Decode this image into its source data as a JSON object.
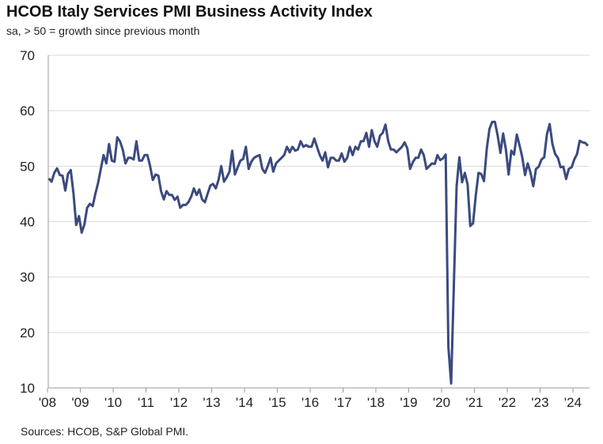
{
  "chart_data": {
    "type": "line",
    "title": "HCOB Italy Services PMI Business Activity Index",
    "subtitle": "sa, > 50 = growth since previous month",
    "source": "Sources: HCOB, S&P Global PMI.",
    "ylim": [
      10,
      70
    ],
    "yticks": [
      "10",
      "20",
      "30",
      "40",
      "50",
      "60",
      "70"
    ],
    "xticks": [
      "'08",
      "'09",
      "'10",
      "'11",
      "'12",
      "'13",
      "'14",
      "'15",
      "'16",
      "'17",
      "'18",
      "'19",
      "'20",
      "'21",
      "'22",
      "'23",
      "'24"
    ],
    "grid": true,
    "line_color": "#3b4a7e",
    "start": "2008-01",
    "frequency": "monthly",
    "values": [
      47.8,
      47.2,
      48.8,
      49.6,
      48.4,
      48.3,
      45.6,
      48.6,
      49.3,
      45.0,
      39.4,
      41.0,
      38.0,
      39.5,
      42.5,
      43.2,
      42.8,
      45.0,
      47.0,
      49.5,
      52.0,
      50.5,
      54.0,
      51.0,
      50.8,
      55.2,
      54.5,
      53.0,
      50.5,
      51.5,
      51.5,
      51.2,
      54.5,
      51.0,
      51.0,
      52.0,
      52.0,
      50.0,
      47.5,
      48.5,
      48.3,
      45.5,
      44.0,
      45.5,
      44.8,
      44.8,
      43.9,
      44.5,
      42.5,
      43.0,
      43.0,
      43.5,
      44.5,
      46.0,
      44.8,
      45.8,
      44.0,
      43.5,
      45.0,
      46.5,
      46.8,
      46.0,
      47.5,
      50.0,
      47.2,
      48.0,
      49.0,
      52.8,
      48.5,
      49.8,
      51.0,
      51.3,
      53.5,
      49.5,
      50.8,
      51.5,
      51.8,
      52.0,
      49.5,
      48.8,
      50.0,
      51.5,
      49.0,
      50.5,
      51.0,
      51.5,
      52.0,
      53.5,
      52.5,
      53.5,
      52.8,
      53.0,
      54.5,
      53.5,
      53.8,
      53.5,
      53.5,
      55.0,
      53.5,
      52.0,
      51.0,
      52.5,
      49.8,
      51.5,
      51.5,
      51.0,
      51.0,
      52.3,
      50.8,
      51.5,
      53.5,
      52.0,
      53.5,
      53.0,
      54.5,
      54.5,
      56.0,
      53.5,
      56.5,
      54.5,
      53.5,
      55.5,
      56.0,
      57.5,
      54.5,
      53.0,
      53.0,
      52.5,
      53.0,
      53.5,
      54.3,
      53.2,
      49.5,
      50.7,
      51.5,
      51.5,
      53.0,
      52.0,
      49.5,
      50.0,
      50.5,
      50.4,
      52.0,
      51.1,
      51.4,
      52.1,
      17.4,
      10.8,
      28.9,
      46.4,
      51.6,
      47.1,
      48.8,
      46.7,
      39.2,
      39.7,
      44.7,
      48.8,
      48.6,
      47.3,
      53.1,
      56.7,
      58.0,
      58.0,
      55.5,
      52.4,
      55.9,
      53.0,
      48.5,
      52.8,
      52.1,
      55.7,
      53.7,
      51.6,
      48.4,
      50.5,
      48.8,
      46.4,
      49.5,
      49.9,
      51.2,
      51.6,
      55.7,
      57.6,
      54.0,
      52.2,
      51.5,
      49.8,
      49.9,
      47.7,
      49.5,
      49.8,
      51.2,
      52.2,
      54.6,
      54.3,
      54.2,
      53.7
    ]
  }
}
